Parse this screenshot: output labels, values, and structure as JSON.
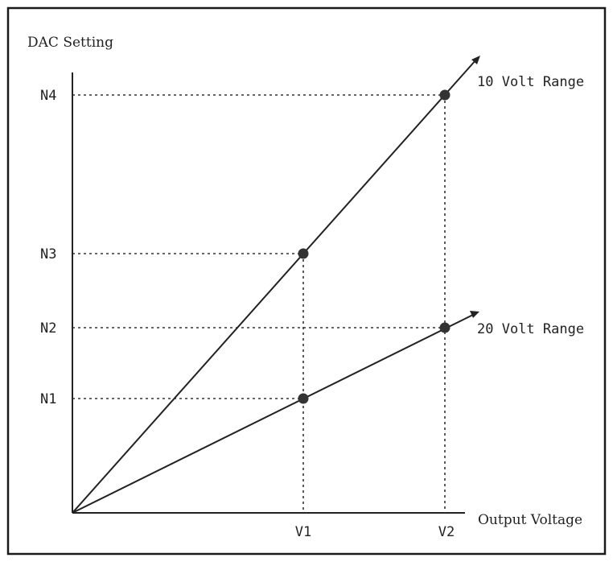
{
  "chart_data": {
    "type": "line",
    "title": "",
    "ylabel": "DAC Setting",
    "xlabel": "Output Voltage",
    "x_ticks": [
      "V1",
      "V2"
    ],
    "y_ticks": [
      "N1",
      "N2",
      "N3",
      "N4"
    ],
    "series": [
      {
        "name": "10 Volt Range",
        "points": [
          [
            "0",
            "0"
          ],
          [
            "V1",
            "N3"
          ],
          [
            "V2",
            "N4"
          ]
        ]
      },
      {
        "name": "20 Volt Range",
        "points": [
          [
            "0",
            "0"
          ],
          [
            "V1",
            "N1"
          ],
          [
            "V2",
            "N2"
          ]
        ]
      }
    ]
  }
}
